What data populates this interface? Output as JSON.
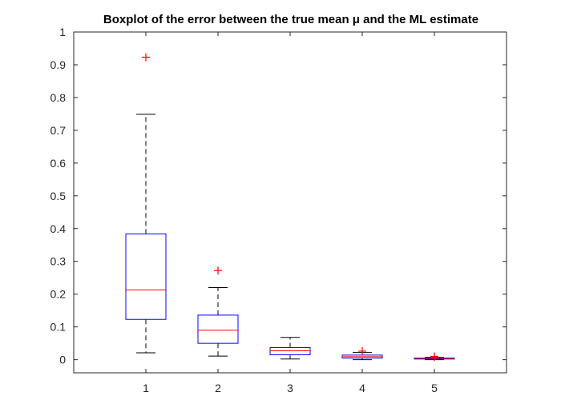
{
  "chart_data": {
    "type": "boxplot",
    "title": "Boxplot of the error between the true mean μ and the ML estimate",
    "xlabel": "",
    "ylabel": "",
    "categories": [
      "1",
      "2",
      "3",
      "4",
      "5"
    ],
    "ylim": [
      -0.04,
      1
    ],
    "yticks": [
      0,
      0.1,
      0.2,
      0.3,
      0.4,
      0.5,
      0.6,
      0.7,
      0.8,
      0.9,
      1
    ],
    "ytick_labels": [
      "0",
      "0.1",
      "0.2",
      "0.3",
      "0.4",
      "0.5",
      "0.6",
      "0.7",
      "0.8",
      "0.9",
      "1"
    ],
    "grid": false,
    "boxes": [
      {
        "category": "1",
        "whisker_low": 0.021,
        "q1": 0.123,
        "median": 0.213,
        "q3": 0.384,
        "whisker_high": 0.749,
        "outliers": [
          0.923
        ]
      },
      {
        "category": "2",
        "whisker_low": 0.011,
        "q1": 0.05,
        "median": 0.09,
        "q3": 0.136,
        "whisker_high": 0.22,
        "outliers": [
          0.272
        ]
      },
      {
        "category": "3",
        "whisker_low": 0.002,
        "q1": 0.015,
        "median": 0.027,
        "q3": 0.037,
        "whisker_high": 0.068,
        "outliers": []
      },
      {
        "category": "4",
        "whisker_low": 0.0,
        "q1": 0.005,
        "median": 0.009,
        "q3": 0.014,
        "whisker_high": 0.022,
        "outliers": [
          0.026
        ]
      },
      {
        "category": "5",
        "whisker_low": 0.0,
        "q1": 0.002,
        "median": 0.004,
        "q3": 0.005,
        "whisker_high": 0.007,
        "outliers": [
          0.008,
          0.01
        ]
      }
    ],
    "colors": {
      "box": "#0000ff",
      "median": "#ff0000",
      "outlier": "#ff0000",
      "whisker": "#000000",
      "axis": "#262626"
    }
  }
}
